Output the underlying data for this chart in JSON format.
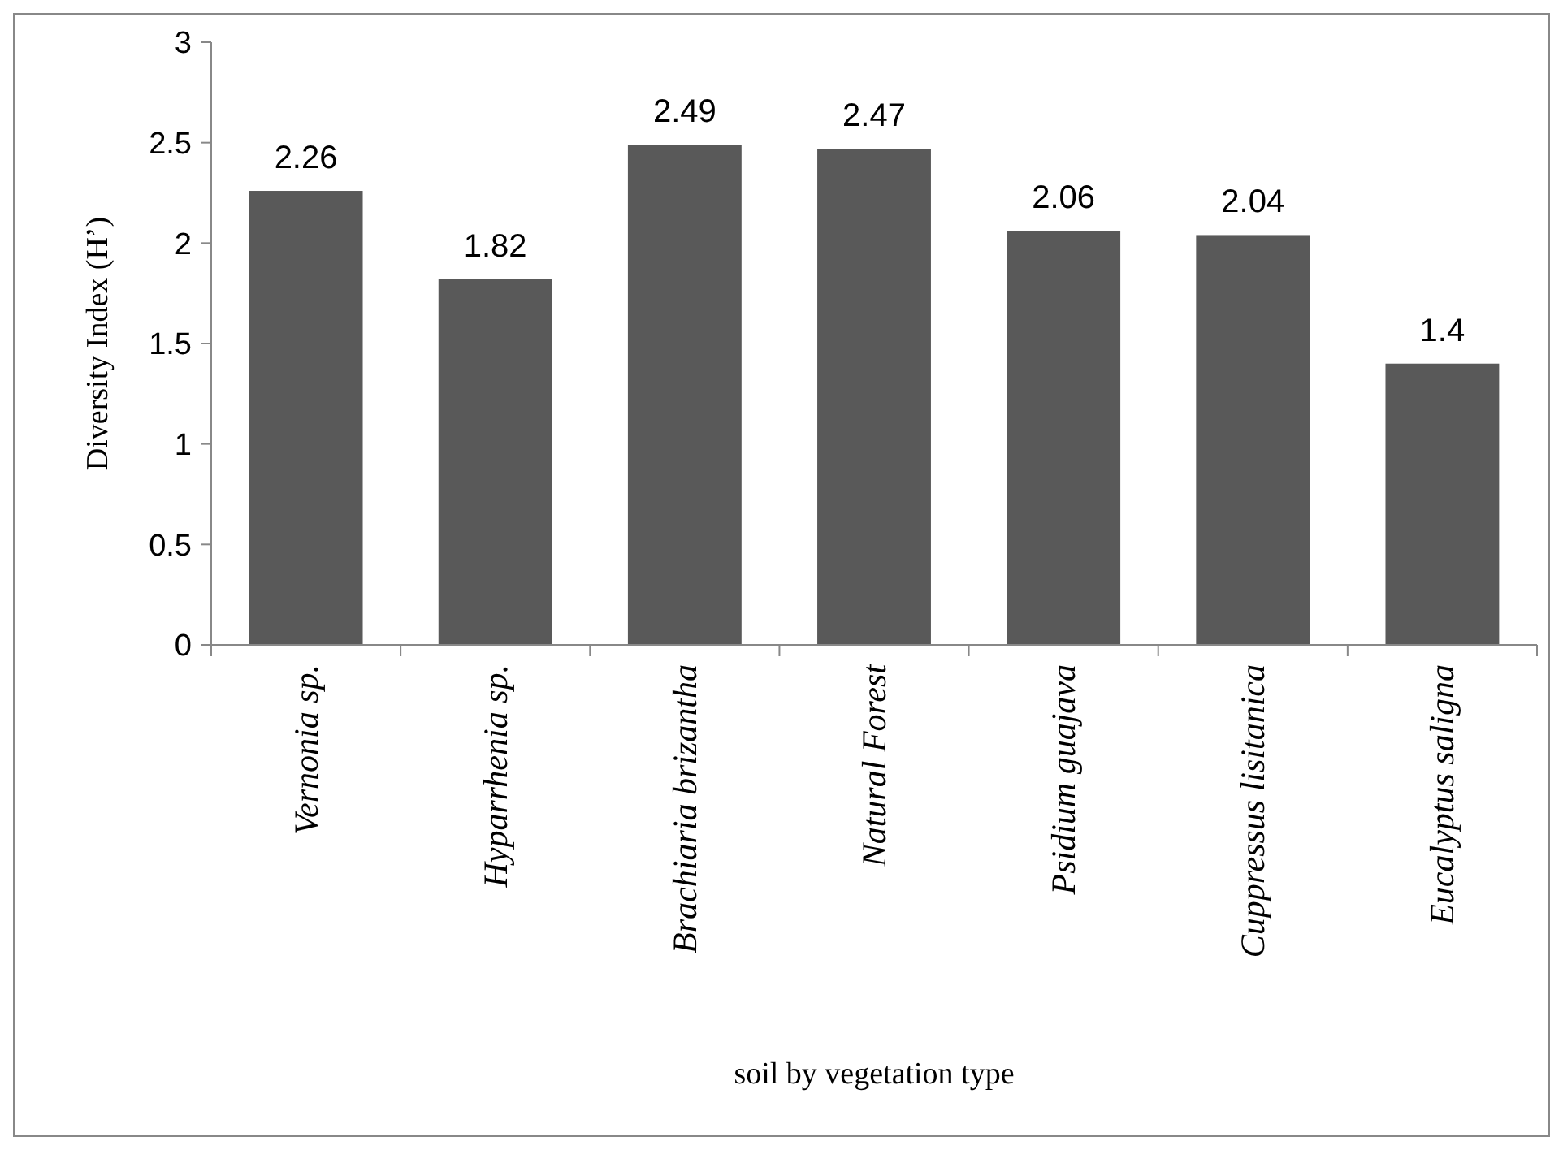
{
  "chart_data": {
    "type": "bar",
    "xlabel": "soil by vegetation type",
    "ylabel": "Diversity Index (H’)",
    "categories": [
      "Vernonia sp.",
      "Hyparrhenia sp.",
      "Brachiaria brizantha",
      "Natural Forest",
      "Psidium guajava",
      "Cuppressus lisitanica",
      "Eucalyptus saligna"
    ],
    "values": [
      2.26,
      1.82,
      2.49,
      2.47,
      2.06,
      2.04,
      1.4
    ],
    "color": "#595959",
    "ylim": [
      0,
      3
    ],
    "yticks": [
      0,
      0.5,
      1,
      1.5,
      2,
      2.5,
      3
    ],
    "grid": false,
    "data_labels": true
  }
}
